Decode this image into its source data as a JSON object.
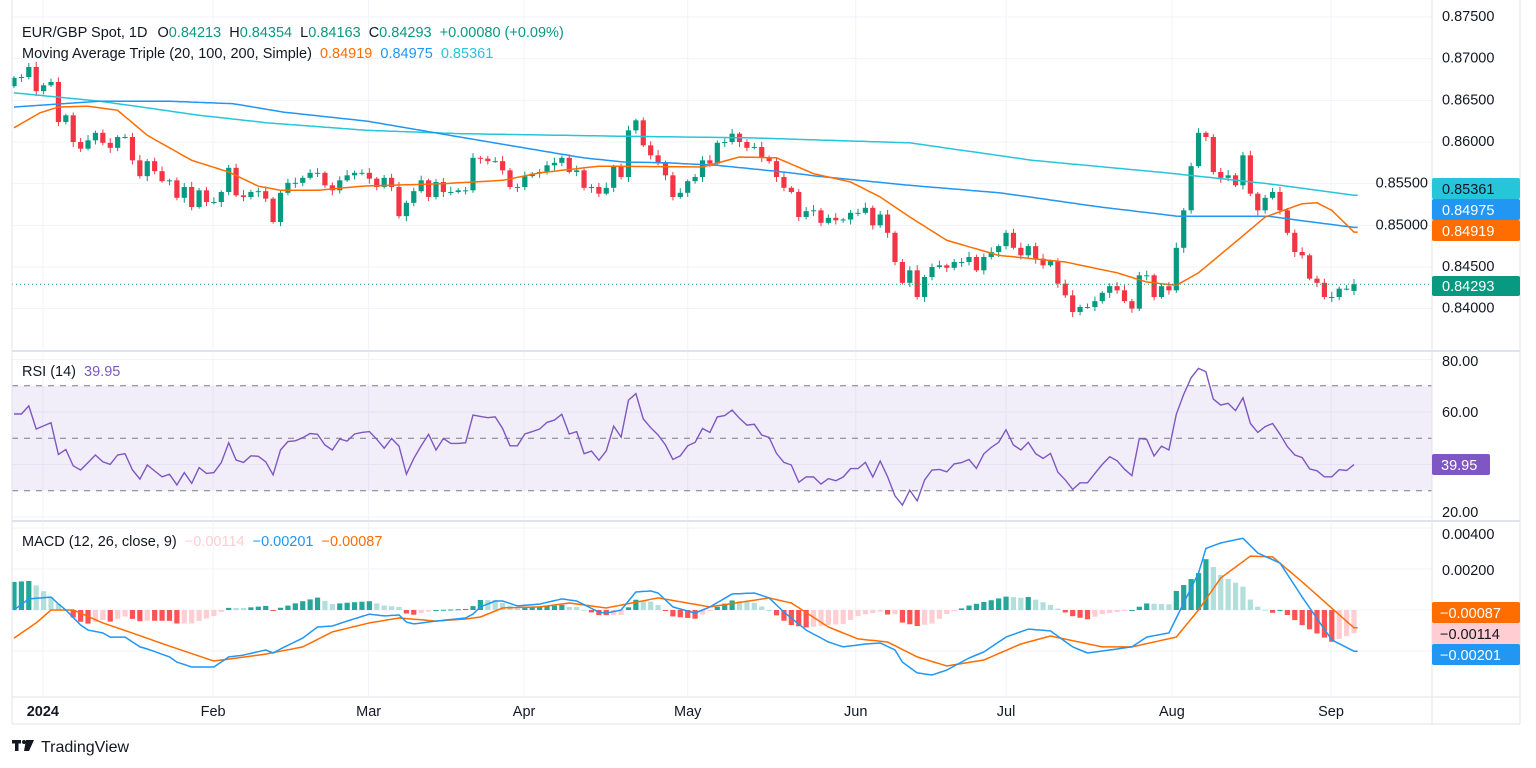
{
  "header": {
    "symbol": "EUR/GBP Spot, 1D",
    "o_label": "O",
    "open": "0.84213",
    "h_label": "H",
    "high": "0.84354",
    "l_label": "L",
    "low": "0.84163",
    "c_label": "C",
    "close": "0.84293",
    "change": "+0.00080 (+0.09%)",
    "ma_title": "Moving Average Triple (20, 100, 200, Simple)",
    "ma20": "0.84919",
    "ma100": "0.84975",
    "ma200": "0.85361"
  },
  "rsi_header": {
    "title": "RSI (14)",
    "value": "39.95"
  },
  "macd_header": {
    "title": "MACD (12, 26, close, 9)",
    "hist": "−0.00114",
    "macd": "−0.00201",
    "signal": "−0.00087"
  },
  "price_axis": {
    "ticks": [
      "0.87500",
      "0.87000",
      "0.86500",
      "0.86000",
      "0.85500",
      "0.85000",
      "0.84500",
      "0.84000"
    ]
  },
  "price_tags": {
    "ma200": "0.85361",
    "ma100": "0.84975",
    "ma20": "0.84919",
    "last": "0.84293"
  },
  "rsi_axis": {
    "ticks": [
      "80.00",
      "60.00",
      "20.00"
    ],
    "tag": "39.95"
  },
  "macd_axis": {
    "ticks": [
      "0.00400",
      "0.00200"
    ],
    "tag_signal": "−0.00087",
    "tag_hist": "−0.00114",
    "tag_macd": "−0.00201"
  },
  "time_axis": {
    "labels": [
      {
        "text": "2024",
        "bar": 3.9,
        "bold": true
      },
      {
        "text": "Feb",
        "bar": 26.9
      },
      {
        "text": "Mar",
        "bar": 47.9
      },
      {
        "text": "Apr",
        "bar": 68.9
      },
      {
        "text": "May",
        "bar": 91.0
      },
      {
        "text": "Jun",
        "bar": 113.7
      },
      {
        "text": "Jul",
        "bar": 134.0
      },
      {
        "text": "Aug",
        "bar": 156.4
      },
      {
        "text": "Sep",
        "bar": 177.9
      }
    ]
  },
  "branding": {
    "name": "TradingView"
  },
  "colors": {
    "up": "#089981",
    "down": "#f23645",
    "ma20": "#ff6d00",
    "ma100": "#2196f3",
    "ma200": "#26c6da",
    "rsi": "#7e57c2",
    "macd": "#2196f3",
    "signal": "#ff6d00"
  },
  "chart_data": [
    {
      "type": "candlestick",
      "title": "EUR/GBP Spot, 1D",
      "ylim": [
        0.8375,
        0.876
      ],
      "last_bar": {
        "open": 0.84213,
        "high": 0.84354,
        "low": 0.84163,
        "close": 0.84293
      },
      "closes": [
        0.8677,
        0.8678,
        0.869,
        0.8661,
        0.8668,
        0.8672,
        0.8624,
        0.8632,
        0.86,
        0.8592,
        0.8602,
        0.8611,
        0.8599,
        0.8593,
        0.8606,
        0.8606,
        0.8578,
        0.8559,
        0.8577,
        0.8565,
        0.8553,
        0.8554,
        0.8533,
        0.8546,
        0.8522,
        0.8542,
        0.8528,
        0.8528,
        0.854,
        0.8569,
        0.8536,
        0.8534,
        0.854,
        0.8541,
        0.8532,
        0.8504,
        0.8539,
        0.8551,
        0.8551,
        0.8557,
        0.8563,
        0.8563,
        0.8548,
        0.8542,
        0.8554,
        0.856,
        0.8563,
        0.8563,
        0.8556,
        0.8546,
        0.8557,
        0.8546,
        0.8511,
        0.8527,
        0.8541,
        0.8554,
        0.8534,
        0.8552,
        0.854,
        0.854,
        0.8542,
        0.8542,
        0.8581,
        0.858,
        0.8577,
        0.8577,
        0.8566,
        0.8546,
        0.8546,
        0.8559,
        0.8562,
        0.8564,
        0.8572,
        0.8575,
        0.8581,
        0.8564,
        0.8566,
        0.8545,
        0.8546,
        0.8538,
        0.8545,
        0.857,
        0.8558,
        0.8614,
        0.8626,
        0.8596,
        0.8584,
        0.8575,
        0.856,
        0.8534,
        0.8539,
        0.8553,
        0.8558,
        0.8578,
        0.8574,
        0.8599,
        0.86,
        0.861,
        0.86,
        0.8593,
        0.8594,
        0.8581,
        0.8577,
        0.8558,
        0.8545,
        0.854,
        0.851,
        0.8517,
        0.8518,
        0.8503,
        0.8509,
        0.8506,
        0.8507,
        0.8515,
        0.8515,
        0.8521,
        0.85,
        0.8513,
        0.8491,
        0.8456,
        0.8431,
        0.8446,
        0.8414,
        0.8438,
        0.845,
        0.8452,
        0.8449,
        0.8456,
        0.8456,
        0.8462,
        0.8446,
        0.8462,
        0.8468,
        0.8475,
        0.8491,
        0.8473,
        0.8464,
        0.8475,
        0.846,
        0.8452,
        0.8457,
        0.843,
        0.8416,
        0.8396,
        0.8402,
        0.8402,
        0.8409,
        0.8419,
        0.8427,
        0.8422,
        0.8409,
        0.84,
        0.844,
        0.844,
        0.8414,
        0.8427,
        0.8422,
        0.8473,
        0.8518,
        0.8571,
        0.8611,
        0.8606,
        0.8564,
        0.8557,
        0.856,
        0.8548,
        0.8584,
        0.8538,
        0.8518,
        0.8533,
        0.854,
        0.8518,
        0.8491,
        0.8468,
        0.8464,
        0.8436,
        0.8431,
        0.8414,
        0.8414,
        0.8424,
        0.8424,
        0.84293
      ],
      "ma20": [
        [
          0,
          0.8617
        ],
        [
          3.5,
          0.8635
        ],
        [
          6,
          0.8642
        ],
        [
          10,
          0.8643
        ],
        [
          14,
          0.8638
        ],
        [
          18,
          0.8608
        ],
        [
          24,
          0.8578
        ],
        [
          29,
          0.8564
        ],
        [
          33,
          0.8547
        ],
        [
          36,
          0.8542
        ],
        [
          41,
          0.8542
        ],
        [
          47,
          0.8547
        ],
        [
          58,
          0.855
        ],
        [
          66,
          0.8554
        ],
        [
          71,
          0.8563
        ],
        [
          79,
          0.8571
        ],
        [
          93,
          0.857
        ],
        [
          98,
          0.8582
        ],
        [
          103,
          0.8581
        ],
        [
          108,
          0.8562
        ],
        [
          113,
          0.8552
        ],
        [
          117,
          0.8534
        ],
        [
          121,
          0.851
        ],
        [
          126,
          0.8482
        ],
        [
          133,
          0.8464
        ],
        [
          142,
          0.8456
        ],
        [
          149,
          0.8443
        ],
        [
          153,
          0.8432
        ],
        [
          157,
          0.8428
        ],
        [
          160,
          0.8443
        ],
        [
          165,
          0.848
        ],
        [
          169,
          0.851
        ],
        [
          174,
          0.8526
        ],
        [
          176,
          0.8527
        ],
        [
          178,
          0.8518
        ],
        [
          181,
          0.84919
        ]
      ],
      "ma100": [
        [
          0,
          0.8642
        ],
        [
          11.6,
          0.8649
        ],
        [
          20.7,
          0.8649
        ],
        [
          29.6,
          0.8646
        ],
        [
          36.3,
          0.8636
        ],
        [
          47.7,
          0.8625
        ],
        [
          60.2,
          0.8606
        ],
        [
          76.9,
          0.8581
        ],
        [
          82.3,
          0.8576
        ],
        [
          88.2,
          0.8575
        ],
        [
          95,
          0.8572
        ],
        [
          103.9,
          0.8564
        ],
        [
          108.5,
          0.8559
        ],
        [
          121,
          0.8548
        ],
        [
          133.2,
          0.8539
        ],
        [
          146.7,
          0.8522
        ],
        [
          157.1,
          0.8511
        ],
        [
          169.3,
          0.8511
        ],
        [
          181,
          0.84975
        ]
      ],
      "ma200": [
        [
          0,
          0.8659
        ],
        [
          11.6,
          0.8649
        ],
        [
          25.1,
          0.8632
        ],
        [
          34.2,
          0.8623
        ],
        [
          47.7,
          0.8614
        ],
        [
          60.2,
          0.861
        ],
        [
          81.4,
          0.8607
        ],
        [
          99.4,
          0.8605
        ],
        [
          121,
          0.8599
        ],
        [
          137.6,
          0.8578
        ],
        [
          155.7,
          0.8563
        ],
        [
          169.3,
          0.855
        ],
        [
          181,
          0.85361
        ]
      ]
    },
    {
      "type": "line",
      "title": "RSI (14)",
      "ylim": [
        20,
        80
      ],
      "bands": {
        "upper": 70,
        "middle": 50,
        "lower": 30
      },
      "values": [
        59.2,
        59.2,
        62.3,
        53.5,
        54.7,
        55.9,
        43.8,
        45.7,
        39.5,
        37.9,
        40.7,
        43.6,
        41.0,
        40.0,
        43.6,
        44.1,
        37.9,
        34.4,
        39.8,
        37.5,
        35.3,
        36.3,
        32.2,
        36.9,
        32.8,
        38.8,
        36.6,
        36.9,
        40.7,
        48.3,
        41.7,
        40.8,
        43.3,
        43.1,
        41.0,
        36.0,
        45.5,
        48.7,
        49.0,
        50.2,
        51.8,
        51.5,
        47.4,
        45.5,
        49.7,
        48.9,
        51.6,
        52.2,
        52.5,
        49.6,
        46.2,
        49.9,
        47.0,
        36.3,
        42.3,
        47.1,
        51.5,
        45.5,
        49.9,
        48.0,
        48.0,
        48.3,
        58.8,
        58.3,
        57.8,
        58.1,
        53.7,
        47.1,
        47.1,
        51.6,
        52.5,
        53.5,
        56.0,
        56.9,
        59.1,
        51.6,
        52.5,
        44.1,
        45.1,
        41.6,
        45.2,
        54.6,
        50.4,
        64.5,
        67.0,
        57.3,
        54.0,
        51.2,
        47.4,
        41.9,
        43.3,
        47.1,
        48.4,
        53.7,
        52.2,
        58.1,
        58.6,
        60.7,
        57.6,
        55.0,
        55.3,
        51.2,
        50.3,
        44.2,
        40.8,
        39.8,
        33.2,
        35.3,
        35.2,
        32.5,
        34.6,
        33.8,
        35.2,
        38.4,
        38.4,
        40.8,
        35.2,
        41.3,
        35.3,
        28.0,
        24.5,
        30.2,
        26.1,
        34.1,
        37.9,
        38.1,
        37.2,
        40.2,
        40.7,
        41.9,
        38.5,
        44.0,
        46.5,
        48.4,
        53.2,
        47.4,
        45.5,
        48.4,
        44.1,
        42.3,
        44.2,
        37.0,
        34.1,
        30.5,
        33.0,
        33.0,
        36.6,
        40.0,
        42.9,
        41.4,
        38.2,
        35.7,
        49.9,
        49.6,
        43.2,
        47.0,
        45.5,
        59.1,
        66.7,
        73.0,
        76.6,
        75.3,
        64.9,
        62.6,
        63.3,
        60.5,
        65.4,
        55.6,
        52.2,
        54.4,
        55.6,
        51.5,
        46.8,
        43.6,
        42.6,
        38.3,
        37.6,
        35.3,
        35.3,
        38.0,
        37.7,
        39.95
      ]
    },
    {
      "type": "line+bar",
      "title": "MACD (12, 26, close, 9)",
      "ylim": [
        -0.0033,
        0.0042
      ],
      "macd": [
        [
          0,
          0.0
        ],
        [
          2,
          0.00054
        ],
        [
          5,
          0.00063
        ],
        [
          6,
          0.0003
        ],
        [
          7,
          0.0
        ],
        [
          9,
          -0.00073
        ],
        [
          10,
          -0.00098
        ],
        [
          12,
          -0.00112
        ],
        [
          13,
          -0.00132
        ],
        [
          15,
          -0.00132
        ],
        [
          17,
          -0.0018
        ],
        [
          18,
          -0.0019
        ],
        [
          21,
          -0.00229
        ],
        [
          22,
          -0.00254
        ],
        [
          24,
          -0.00278
        ],
        [
          27,
          -0.00278
        ],
        [
          29,
          -0.00229
        ],
        [
          31,
          -0.0022
        ],
        [
          34,
          -0.00195
        ],
        [
          35,
          -0.0021
        ],
        [
          36,
          -0.0019
        ],
        [
          39,
          -0.00137
        ],
        [
          41,
          -0.00083
        ],
        [
          43,
          -0.00078
        ],
        [
          45,
          -0.00054
        ],
        [
          48,
          -0.0002
        ],
        [
          50,
          -0.00029
        ],
        [
          52,
          -0.00024
        ],
        [
          53,
          -0.00059
        ],
        [
          54,
          -0.00068
        ],
        [
          57,
          -0.00054
        ],
        [
          61,
          -0.00039
        ],
        [
          62,
          -0.0002
        ],
        [
          63,
          0.00015
        ],
        [
          65,
          0.00044
        ],
        [
          66,
          0.00044
        ],
        [
          68,
          0.0002
        ],
        [
          71,
          0.00029
        ],
        [
          74,
          0.00054
        ],
        [
          76,
          0.00044
        ],
        [
          79,
          -0.0001
        ],
        [
          80,
          -0.00015
        ],
        [
          82,
          0.0
        ],
        [
          84,
          0.00088
        ],
        [
          86,
          0.00093
        ],
        [
          87,
          0.00083
        ],
        [
          89,
          0.00015
        ],
        [
          92,
          -0.00015
        ],
        [
          94,
          0.00015
        ],
        [
          97,
          0.00078
        ],
        [
          100,
          0.00083
        ],
        [
          102,
          0.00059
        ],
        [
          104,
          -0.0001
        ],
        [
          107,
          -0.00098
        ],
        [
          110,
          -0.00156
        ],
        [
          112,
          -0.0018
        ],
        [
          115,
          -0.00166
        ],
        [
          117,
          -0.00161
        ],
        [
          119,
          -0.00195
        ],
        [
          120,
          -0.00254
        ],
        [
          122,
          -0.00307
        ],
        [
          124,
          -0.00317
        ],
        [
          126,
          -0.00293
        ],
        [
          129,
          -0.00234
        ],
        [
          131,
          -0.00205
        ],
        [
          134,
          -0.00132
        ],
        [
          137,
          -0.00093
        ],
        [
          140,
          -0.00102
        ],
        [
          143,
          -0.0018
        ],
        [
          145,
          -0.0021
        ],
        [
          148,
          -0.00195
        ],
        [
          151,
          -0.0018
        ],
        [
          153,
          -0.00132
        ],
        [
          156,
          -0.00112
        ],
        [
          158,
          0.00034
        ],
        [
          160,
          0.0018
        ],
        [
          161,
          0.003
        ],
        [
          163,
          0.00327
        ],
        [
          166,
          0.0035
        ],
        [
          168,
          0.00278
        ],
        [
          171,
          0.00229
        ],
        [
          174,
          0.00063
        ],
        [
          178,
          -0.00146
        ],
        [
          181,
          -0.00201
        ]
      ],
      "signal": [
        [
          0,
          -0.00137
        ],
        [
          3,
          -0.00063
        ],
        [
          5,
          0.0
        ],
        [
          8,
          0.0
        ],
        [
          12,
          -0.00063
        ],
        [
          15,
          -0.001
        ],
        [
          21,
          -0.00176
        ],
        [
          27,
          -0.00249
        ],
        [
          34,
          -0.00215
        ],
        [
          39,
          -0.0018
        ],
        [
          43,
          -0.00107
        ],
        [
          48,
          -0.00063
        ],
        [
          52,
          -0.00039
        ],
        [
          57,
          -0.00054
        ],
        [
          61,
          -0.00044
        ],
        [
          63,
          -0.00034
        ],
        [
          66,
          0.0001
        ],
        [
          71,
          0.00015
        ],
        [
          75,
          0.00034
        ],
        [
          80,
          0.0001
        ],
        [
          87,
          0.00059
        ],
        [
          94,
          0.00015
        ],
        [
          102,
          0.00059
        ],
        [
          105,
          0.00034
        ],
        [
          110,
          -0.00083
        ],
        [
          114,
          -0.00141
        ],
        [
          118,
          -0.00156
        ],
        [
          122,
          -0.00229
        ],
        [
          126,
          -0.00273
        ],
        [
          131,
          -0.00244
        ],
        [
          136,
          -0.00166
        ],
        [
          140,
          -0.00127
        ],
        [
          147,
          -0.0018
        ],
        [
          151,
          -0.0018
        ],
        [
          157,
          -0.00132
        ],
        [
          160,
          0.0
        ],
        [
          163,
          0.00156
        ],
        [
          167,
          0.00263
        ],
        [
          170,
          0.00259
        ],
        [
          174,
          0.00137
        ],
        [
          181,
          -0.00087
        ]
      ],
      "histogram": "macd minus signal"
    }
  ]
}
